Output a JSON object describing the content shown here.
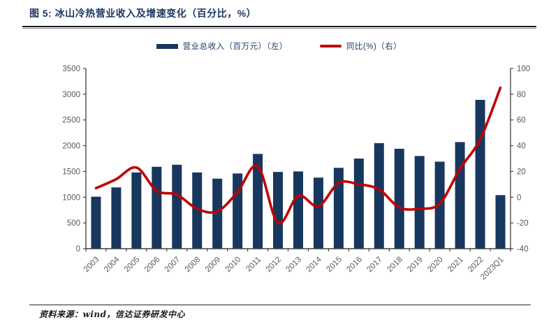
{
  "figure": {
    "title": "图 5: 冰山冷热营业收入及增速变化（百分比，%）",
    "source": "资料来源：wind，信达证券研发中心"
  },
  "colors": {
    "bar_navy": "#17375e",
    "line_red": "#c00000",
    "title_navy": "#1f3864",
    "axis_gray": "#595959",
    "axis_line": "#404040"
  },
  "chart_data": {
    "type": "bar",
    "subtype": "bar+line dual axis",
    "categories": [
      "2003",
      "2004",
      "2005",
      "2006",
      "2007",
      "2008",
      "2009",
      "2010",
      "2011",
      "2012",
      "2013",
      "2014",
      "2015",
      "2016",
      "2017",
      "2018",
      "2019",
      "2020",
      "2021",
      "2022",
      "2023Q1"
    ],
    "series": [
      {
        "name": "营业总收入（百万元）（左）",
        "type": "bar",
        "axis": "left",
        "color": "#17375e",
        "values": [
          1010,
          1190,
          1480,
          1590,
          1630,
          1480,
          1360,
          1460,
          1840,
          1490,
          1500,
          1380,
          1570,
          1750,
          2050,
          1940,
          1800,
          1690,
          2070,
          2890,
          1040
        ]
      },
      {
        "name": "同比(%)（右）",
        "type": "line",
        "axis": "right",
        "color": "#c00000",
        "values": [
          7,
          14,
          23,
          5,
          2,
          -9,
          -11,
          4,
          24,
          -20,
          1,
          -7,
          11,
          10,
          6,
          -8,
          -9,
          -5,
          22,
          45,
          85
        ]
      }
    ],
    "left_axis": {
      "min": 0,
      "max": 3500,
      "step": 500,
      "ticks": [
        0,
        500,
        1000,
        1500,
        2000,
        2500,
        3000,
        3500
      ]
    },
    "right_axis": {
      "min": -40,
      "max": 100,
      "step": 20,
      "ticks": [
        -40,
        -20,
        0,
        20,
        40,
        60,
        80,
        100
      ]
    },
    "grid": false,
    "legend_position": "top",
    "x_label_rotation": -45
  }
}
